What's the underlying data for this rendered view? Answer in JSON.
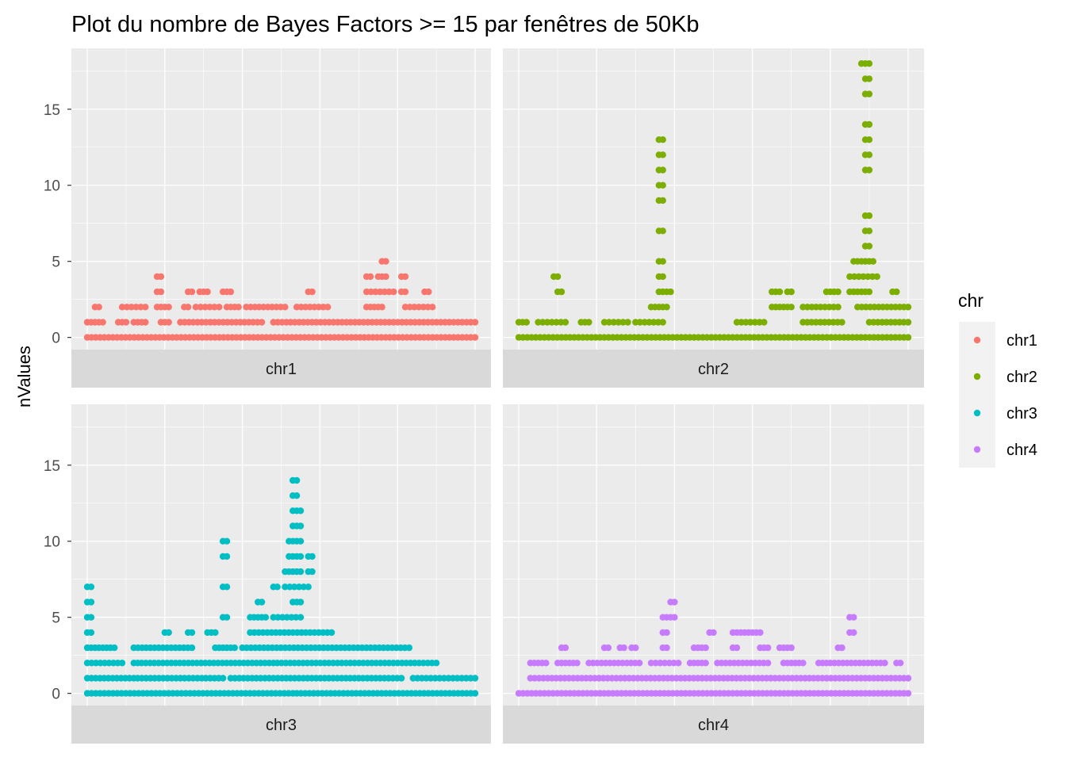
{
  "chart_data": {
    "type": "scatter",
    "title": "Plot du nombre de Bayes Factors >= 15 par fenêtres de 50Kb",
    "xlabel": "",
    "ylabel": "nValues",
    "ylim": [
      -0.8,
      19
    ],
    "yticks": [
      0,
      5,
      10,
      15
    ],
    "ytick_labels": [
      "0",
      "5",
      "10",
      "15"
    ],
    "grid": true,
    "legend": {
      "title": "chr",
      "placement": "right",
      "entries": [
        {
          "label": "chr1",
          "color": "#F8766D"
        },
        {
          "label": "chr2",
          "color": "#7CAE00"
        },
        {
          "label": "chr3",
          "color": "#00BFC4"
        },
        {
          "label": "chr4",
          "color": "#C77CFF"
        }
      ]
    },
    "colors": {
      "panel_bg": "#EBEBEB",
      "strip_bg": "#D9D9D9",
      "grid": "#FFFFFF",
      "legend_key_bg": "#F2F2F2"
    },
    "panels": [
      {
        "strip": "chr1",
        "color": "#F8766D",
        "series": [
          {
            "y": 0,
            "segments": [
              [
                0,
                100
              ]
            ]
          },
          {
            "y": 1,
            "segments": [
              [
                0,
                4
              ],
              [
                8,
                10
              ],
              [
                12,
                15
              ],
              [
                19,
                21
              ],
              [
                24,
                45
              ],
              [
                48,
                100
              ]
            ]
          },
          {
            "y": 2,
            "segments": [
              [
                2,
                3
              ],
              [
                9,
                15
              ],
              [
                18,
                21
              ],
              [
                25,
                26
              ],
              [
                28,
                34
              ],
              [
                36,
                39
              ],
              [
                41,
                51
              ],
              [
                54,
                62
              ],
              [
                72,
                76
              ],
              [
                82,
                89
              ]
            ]
          },
          {
            "y": 3,
            "segments": [
              [
                18,
                19
              ],
              [
                26,
                27
              ],
              [
                29,
                31
              ],
              [
                35,
                37
              ],
              [
                57,
                58
              ],
              [
                72,
                79
              ],
              [
                81,
                82
              ],
              [
                87,
                88
              ]
            ]
          },
          {
            "y": 4,
            "segments": [
              [
                18,
                19
              ],
              [
                72,
                73
              ],
              [
                75,
                77
              ],
              [
                81,
                82
              ]
            ]
          },
          {
            "y": 5,
            "segments": [
              [
                76,
                77
              ]
            ]
          }
        ]
      },
      {
        "strip": "chr2",
        "color": "#7CAE00",
        "series": [
          {
            "y": 0,
            "segments": [
              [
                0,
                100
              ]
            ]
          },
          {
            "y": 1,
            "segments": [
              [
                0,
                2
              ],
              [
                5,
                12
              ],
              [
                16,
                18
              ],
              [
                22,
                28
              ],
              [
                30,
                37
              ],
              [
                56,
                63
              ],
              [
                73,
                83
              ],
              [
                90,
                100
              ]
            ]
          },
          {
            "y": 2,
            "segments": [
              [
                34,
                38
              ],
              [
                65,
                70
              ],
              [
                73,
                82
              ],
              [
                87,
                100
              ]
            ]
          },
          {
            "y": 3,
            "segments": [
              [
                10,
                11
              ],
              [
                36,
                39
              ],
              [
                65,
                67
              ],
              [
                69,
                70
              ],
              [
                79,
                82
              ],
              [
                85,
                90
              ],
              [
                96,
                97
              ]
            ]
          },
          {
            "y": 4,
            "segments": [
              [
                9,
                10
              ],
              [
                36,
                37
              ],
              [
                85,
                92
              ]
            ]
          },
          {
            "y": 5,
            "segments": [
              [
                36,
                37
              ],
              [
                86,
                87
              ],
              [
                88,
                91
              ]
            ]
          },
          {
            "y": 6,
            "segments": [
              [
                89,
                90
              ]
            ]
          },
          {
            "y": 7,
            "segments": [
              [
                36,
                37
              ],
              [
                89,
                90
              ]
            ]
          },
          {
            "y": 8,
            "segments": [
              [
                89,
                90
              ]
            ]
          },
          {
            "y": 9,
            "segments": [
              [
                36,
                37
              ]
            ]
          },
          {
            "y": 10,
            "segments": [
              [
                36,
                37
              ]
            ]
          },
          {
            "y": 11,
            "segments": [
              [
                36,
                37
              ],
              [
                89,
                90
              ]
            ]
          },
          {
            "y": 12,
            "segments": [
              [
                36,
                37
              ],
              [
                89,
                90
              ]
            ]
          },
          {
            "y": 13,
            "segments": [
              [
                36,
                37
              ],
              [
                89,
                90
              ]
            ]
          },
          {
            "y": 14,
            "segments": [
              [
                89,
                90
              ]
            ]
          },
          {
            "y": 16,
            "segments": [
              [
                89,
                90
              ]
            ]
          },
          {
            "y": 17,
            "segments": [
              [
                89,
                90
              ]
            ]
          },
          {
            "y": 18,
            "segments": [
              [
                88,
                90
              ]
            ]
          }
        ]
      },
      {
        "strip": "chr3",
        "color": "#00BFC4",
        "series": [
          {
            "y": 0,
            "segments": [
              [
                0,
                53
              ],
              [
                54,
                100
              ]
            ]
          },
          {
            "y": 1,
            "segments": [
              [
                0,
                12
              ],
              [
                13,
                35
              ],
              [
                37,
                81
              ],
              [
                84,
                100
              ]
            ]
          },
          {
            "y": 2,
            "segments": [
              [
                0,
                9
              ],
              [
                12,
                13
              ],
              [
                14,
                48
              ],
              [
                49,
                90
              ]
            ]
          },
          {
            "y": 3,
            "segments": [
              [
                0,
                1
              ],
              [
                2,
                7
              ],
              [
                12,
                27
              ],
              [
                33,
                38
              ],
              [
                40,
                83
              ]
            ]
          },
          {
            "y": 4,
            "segments": [
              [
                0,
                1
              ],
              [
                20,
                21
              ],
              [
                26,
                27
              ],
              [
                31,
                33
              ],
              [
                42,
                63
              ]
            ]
          },
          {
            "y": 5,
            "segments": [
              [
                0,
                1
              ],
              [
                35,
                36
              ],
              [
                42,
                46
              ],
              [
                48,
                55
              ]
            ]
          },
          {
            "y": 6,
            "segments": [
              [
                0,
                1
              ],
              [
                44,
                45
              ],
              [
                53,
                55
              ]
            ]
          },
          {
            "y": 7,
            "segments": [
              [
                0,
                1
              ],
              [
                35,
                36
              ],
              [
                48,
                49
              ],
              [
                51,
                57
              ]
            ]
          },
          {
            "y": 8,
            "segments": [
              [
                51,
                55
              ],
              [
                57,
                58
              ]
            ]
          },
          {
            "y": 9,
            "segments": [
              [
                35,
                36
              ],
              [
                52,
                55
              ],
              [
                57,
                58
              ]
            ]
          },
          {
            "y": 10,
            "segments": [
              [
                35,
                36
              ],
              [
                52,
                55
              ]
            ]
          },
          {
            "y": 11,
            "segments": [
              [
                53,
                55
              ]
            ]
          },
          {
            "y": 12,
            "segments": [
              [
                53,
                55
              ]
            ]
          },
          {
            "y": 13,
            "segments": [
              [
                53,
                54
              ]
            ]
          },
          {
            "y": 14,
            "segments": [
              [
                53,
                54
              ]
            ]
          }
        ]
      },
      {
        "strip": "chr4",
        "color": "#C77CFF",
        "series": [
          {
            "y": 0,
            "segments": [
              [
                0,
                100
              ]
            ]
          },
          {
            "y": 1,
            "segments": [
              [
                3,
                100
              ]
            ]
          },
          {
            "y": 2,
            "segments": [
              [
                3,
                7
              ],
              [
                10,
                13
              ],
              [
                14,
                15
              ],
              [
                18,
                31
              ],
              [
                34,
                41
              ],
              [
                44,
                48
              ],
              [
                51,
                64
              ],
              [
                68,
                73
              ],
              [
                77,
                79
              ],
              [
                80,
                94
              ],
              [
                97,
                98
              ]
            ]
          },
          {
            "y": 3,
            "segments": [
              [
                11,
                12
              ],
              [
                22,
                23
              ],
              [
                26,
                27
              ],
              [
                29,
                30
              ],
              [
                37,
                38
              ],
              [
                45,
                46
              ],
              [
                47,
                48
              ],
              [
                55,
                56
              ],
              [
                62,
                64
              ],
              [
                67,
                70
              ],
              [
                82,
                83
              ]
            ]
          },
          {
            "y": 4,
            "segments": [
              [
                37,
                38
              ],
              [
                49,
                50
              ],
              [
                55,
                58
              ],
              [
                59,
                62
              ],
              [
                85,
                86
              ]
            ]
          },
          {
            "y": 5,
            "segments": [
              [
                37,
                40
              ],
              [
                85,
                86
              ]
            ]
          },
          {
            "y": 6,
            "segments": [
              [
                39,
                40
              ]
            ]
          }
        ]
      }
    ]
  }
}
